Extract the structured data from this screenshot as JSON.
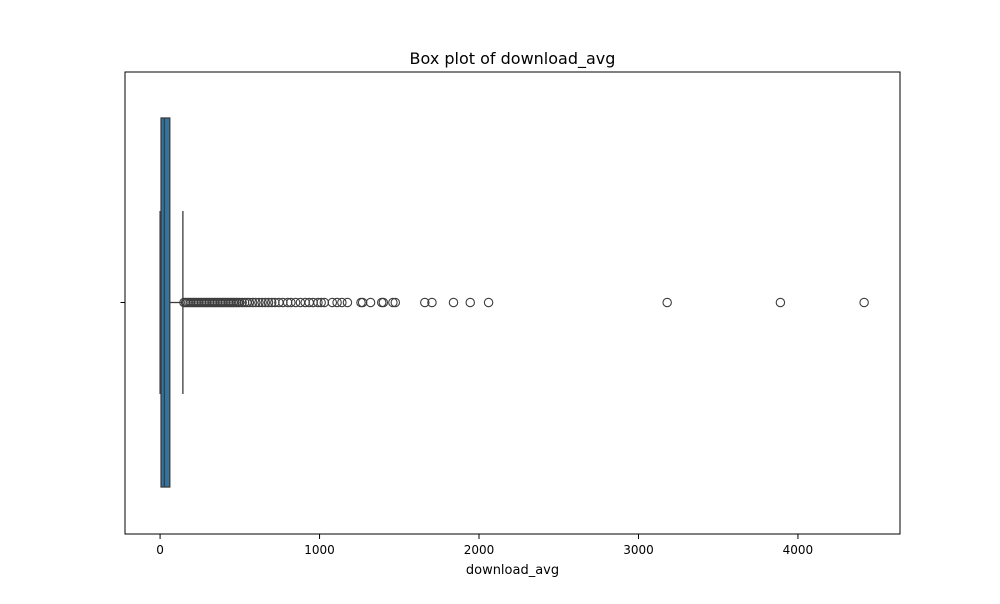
{
  "chart_data": {
    "type": "box",
    "title": "Box plot of download_avg",
    "xlabel": "download_avg",
    "ylabel": "",
    "orientation": "horizontal",
    "xlim": [
      -220,
      4640
    ],
    "x_ticks": [
      0,
      1000,
      2000,
      3000,
      4000
    ],
    "x_tick_labels": [
      "0",
      "1000",
      "2000",
      "3000",
      "4000"
    ],
    "grid": false,
    "box": {
      "whisker_low": 0,
      "q1": 6,
      "median": 27,
      "q3": 61,
      "whisker_high": 143
    },
    "outliers": [
      150,
      160,
      170,
      180,
      190,
      200,
      210,
      220,
      230,
      240,
      250,
      260,
      270,
      280,
      290,
      300,
      310,
      320,
      330,
      340,
      350,
      360,
      370,
      380,
      390,
      400,
      410,
      420,
      430,
      440,
      450,
      460,
      470,
      480,
      490,
      500,
      515,
      530,
      545,
      560,
      580,
      600,
      620,
      640,
      660,
      680,
      700,
      720,
      745,
      770,
      800,
      820,
      850,
      880,
      910,
      935,
      960,
      990,
      1010,
      1030,
      1080,
      1110,
      1140,
      1175,
      1260,
      1270,
      1320,
      1390,
      1400,
      1460,
      1475,
      1660,
      1705,
      1840,
      1945,
      2060,
      3180,
      3890,
      4415
    ],
    "colors": {
      "box_fill": "#3274a1",
      "box_edge": "#3c3c3c",
      "outlier_edge": "#3c3c3c"
    }
  }
}
